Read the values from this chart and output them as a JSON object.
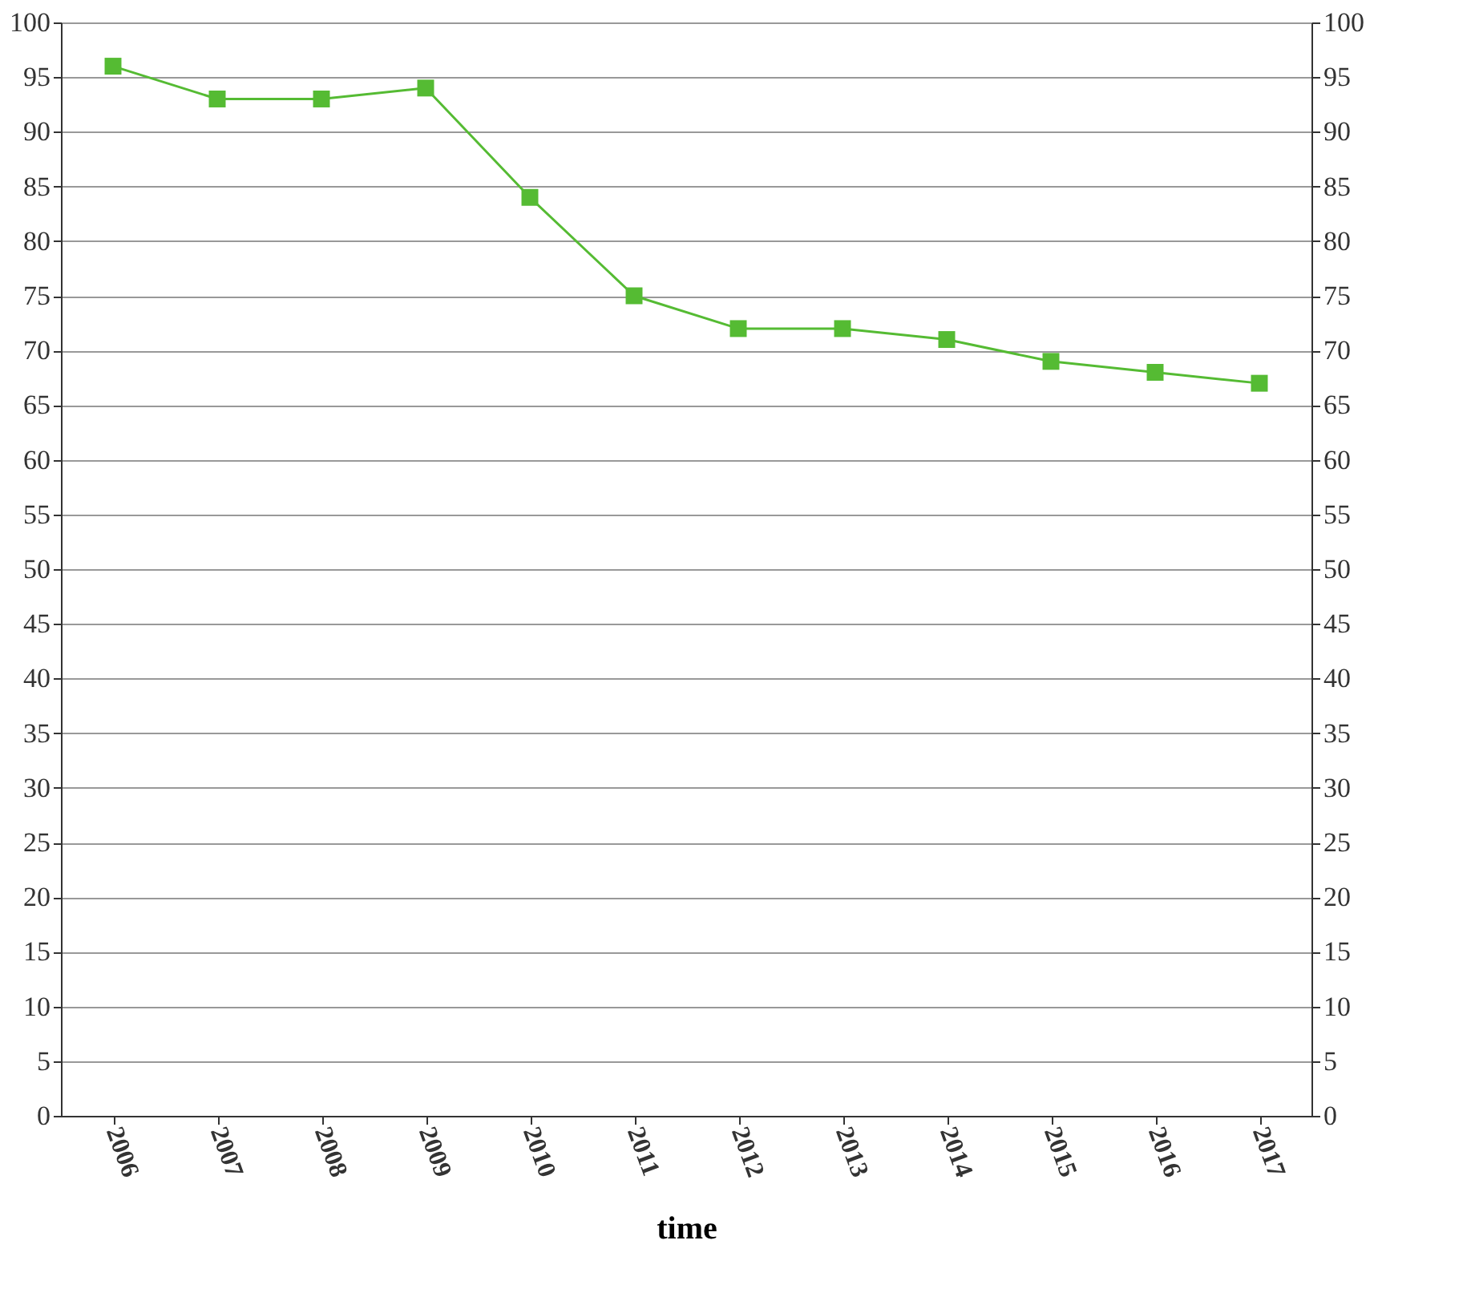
{
  "chart_data": {
    "type": "line",
    "xlabel": "time",
    "categories": [
      "2006",
      "2007",
      "2008",
      "2009",
      "2010",
      "2011",
      "2012",
      "2013",
      "2014",
      "2015",
      "2016",
      "2017"
    ],
    "series": [
      {
        "color": "#55bb33",
        "values": [
          96,
          93,
          93,
          94,
          84,
          75,
          72,
          72,
          71,
          69,
          68,
          67
        ]
      }
    ],
    "ylim": [
      0,
      100
    ],
    "yticks": [
      0,
      5,
      10,
      15,
      20,
      25,
      30,
      35,
      40,
      45,
      50,
      55,
      60,
      65,
      70,
      75,
      80,
      85,
      90,
      95,
      100
    ],
    "y2lim": [
      0,
      100
    ],
    "y2ticks": [
      0,
      5,
      10,
      15,
      20,
      25,
      30,
      35,
      40,
      45,
      50,
      55,
      60,
      65,
      70,
      75,
      80,
      85,
      90,
      95,
      100
    ],
    "grid": "y",
    "marker": "square",
    "line_style": "solid"
  }
}
